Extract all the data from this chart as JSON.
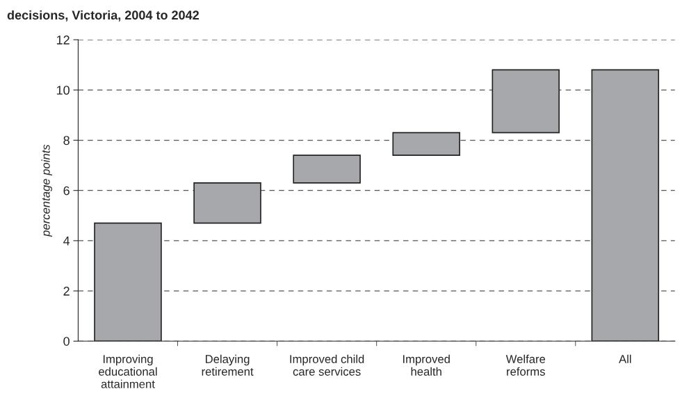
{
  "chart_data": {
    "type": "bar",
    "title": "decisions, Victoria, 2004 to 2042",
    "ylabel": "percentage points",
    "categories": [
      "Improving\neducational\nattainment",
      "Delaying\nretirement",
      "Improved child\ncare services",
      "Improved\nhealth",
      "Welfare\nreforms",
      "All"
    ],
    "values": [
      4.7,
      1.6,
      1.1,
      0.9,
      2.5,
      10.8
    ],
    "base": [
      0,
      4.7,
      6.3,
      7.4,
      8.3,
      0
    ],
    "color": "#a7a8ab",
    "ylim": [
      0,
      12
    ],
    "yticks": [
      0,
      2,
      4,
      6,
      8,
      10,
      12
    ],
    "grid": "y"
  }
}
